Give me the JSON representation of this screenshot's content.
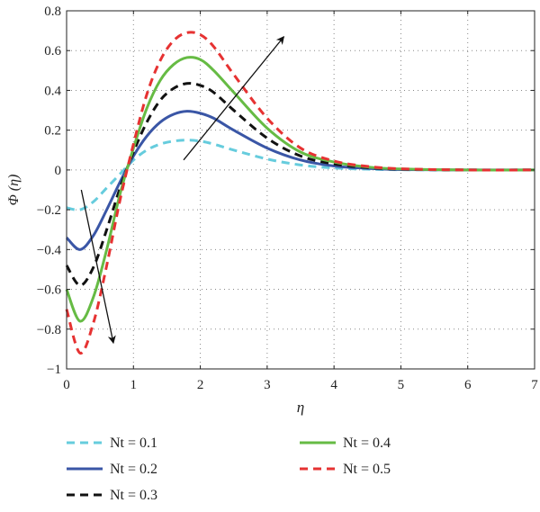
{
  "chart_data": {
    "type": "line",
    "title": "",
    "xlabel": "η",
    "ylabel": "Φ (η)",
    "xlim": [
      0,
      7
    ],
    "ylim": [
      -1,
      0.8
    ],
    "x_ticks": [
      0,
      1,
      2,
      3,
      4,
      5,
      6,
      7
    ],
    "y_ticks": [
      -1,
      -0.8,
      -0.6,
      -0.4,
      -0.2,
      0,
      0.2,
      0.4,
      0.6,
      0.8
    ],
    "x_tick_labels": [
      "0",
      "1",
      "2",
      "3",
      "4",
      "5",
      "6",
      "7"
    ],
    "y_tick_labels": [
      "−1",
      "−0.8",
      "−0.6",
      "−0.4",
      "−0.2",
      "0",
      "0.2",
      "0.4",
      "0.6",
      "0.8"
    ],
    "grid": "dotted",
    "legend_position": "below plot",
    "series": [
      {
        "name": "Nt = 0.1",
        "color": "#66ccdd",
        "dash": "dashed",
        "x": [
          0,
          0.2,
          0.4,
          0.6,
          0.8,
          1.0,
          1.2,
          1.4,
          1.6,
          1.8,
          2.0,
          2.2,
          2.5,
          3.0,
          3.5,
          4.0,
          4.5,
          5.0,
          6.0,
          7.0
        ],
        "y": [
          -0.19,
          -0.2,
          -0.16,
          -0.09,
          -0.02,
          0.05,
          0.1,
          0.13,
          0.145,
          0.15,
          0.145,
          0.13,
          0.1,
          0.055,
          0.025,
          0.01,
          0.004,
          0.001,
          0,
          0
        ]
      },
      {
        "name": "Nt = 0.2",
        "color": "#3a56a6",
        "dash": "solid",
        "x": [
          0,
          0.2,
          0.4,
          0.6,
          0.8,
          1.0,
          1.2,
          1.4,
          1.6,
          1.8,
          2.0,
          2.2,
          2.5,
          3.0,
          3.5,
          4.0,
          4.5,
          5.0,
          6.0,
          7.0
        ],
        "y": [
          -0.34,
          -0.4,
          -0.33,
          -0.2,
          -0.06,
          0.07,
          0.17,
          0.24,
          0.28,
          0.295,
          0.285,
          0.26,
          0.2,
          0.11,
          0.05,
          0.02,
          0.008,
          0.002,
          0,
          0
        ]
      },
      {
        "name": "Nt = 0.3",
        "color": "#111111",
        "dash": "dashed",
        "x": [
          0,
          0.2,
          0.4,
          0.6,
          0.8,
          1.0,
          1.2,
          1.4,
          1.6,
          1.8,
          2.0,
          2.2,
          2.5,
          3.0,
          3.5,
          4.0,
          4.5,
          5.0,
          6.0,
          7.0
        ],
        "y": [
          -0.48,
          -0.58,
          -0.49,
          -0.3,
          -0.09,
          0.09,
          0.24,
          0.35,
          0.41,
          0.435,
          0.425,
          0.39,
          0.3,
          0.16,
          0.07,
          0.03,
          0.012,
          0.004,
          0,
          0
        ]
      },
      {
        "name": "Nt = 0.4",
        "color": "#66bb44",
        "dash": "solid",
        "x": [
          0,
          0.2,
          0.4,
          0.6,
          0.8,
          1.0,
          1.2,
          1.4,
          1.6,
          1.8,
          2.0,
          2.2,
          2.5,
          3.0,
          3.5,
          4.0,
          4.5,
          5.0,
          6.0,
          7.0
        ],
        "y": [
          -0.6,
          -0.76,
          -0.64,
          -0.4,
          -0.12,
          0.11,
          0.31,
          0.45,
          0.53,
          0.565,
          0.555,
          0.5,
          0.39,
          0.21,
          0.09,
          0.04,
          0.015,
          0.005,
          0,
          0
        ]
      },
      {
        "name": "Nt = 0.5",
        "color": "#e63232",
        "dash": "dashed",
        "x": [
          0,
          0.2,
          0.4,
          0.6,
          0.8,
          1.0,
          1.2,
          1.4,
          1.6,
          1.8,
          2.0,
          2.2,
          2.5,
          3.0,
          3.5,
          4.0,
          4.5,
          5.0,
          6.0,
          7.0
        ],
        "y": [
          -0.7,
          -0.92,
          -0.77,
          -0.48,
          -0.15,
          0.13,
          0.38,
          0.55,
          0.65,
          0.69,
          0.68,
          0.62,
          0.48,
          0.26,
          0.11,
          0.045,
          0.018,
          0.006,
          0,
          0
        ]
      }
    ],
    "annotations": [
      {
        "type": "arrow",
        "from": [
          0.22,
          -0.1
        ],
        "to": [
          0.7,
          -0.87
        ]
      },
      {
        "type": "arrow",
        "from": [
          1.75,
          0.05
        ],
        "to": [
          3.25,
          0.67
        ]
      }
    ]
  }
}
